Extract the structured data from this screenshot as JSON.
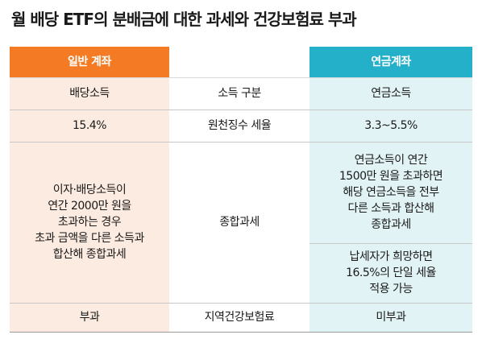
{
  "title": "월 배당 ETF의 분배금에 대한 과세와 건강보험료 부과",
  "headers": {
    "left": "일반 계좌",
    "right": "연금계좌"
  },
  "rows": [
    {
      "left": "배당소득",
      "middle": "소득 구분",
      "right": "연금소득"
    },
    {
      "left": "15.4%",
      "middle": "원천징수 세율",
      "right": "3.3~5.5%"
    },
    {
      "left": "이자·배당소득이\n연간 2000만 원을\n초과하는 경우\n초과 금액을 다른 소득과\n합산해 종합과세",
      "middle": "종합과세",
      "right_a": "연금소득이 연간\n1500만 원을 초과하면\n해당 연금소득을 전부\n다른 소득과 합산해\n종합과세",
      "right_b": "납세자가 희망하면\n16.5%의 단일 세율\n적용 가능"
    },
    {
      "left": "부과",
      "middle": "지역건강보험료",
      "right": "미부과"
    }
  ],
  "colors": {
    "left_header": "#f47b24",
    "left_bg": "#fcebe0",
    "right_header": "#25b0c9",
    "right_bg": "#e2f3f6"
  }
}
